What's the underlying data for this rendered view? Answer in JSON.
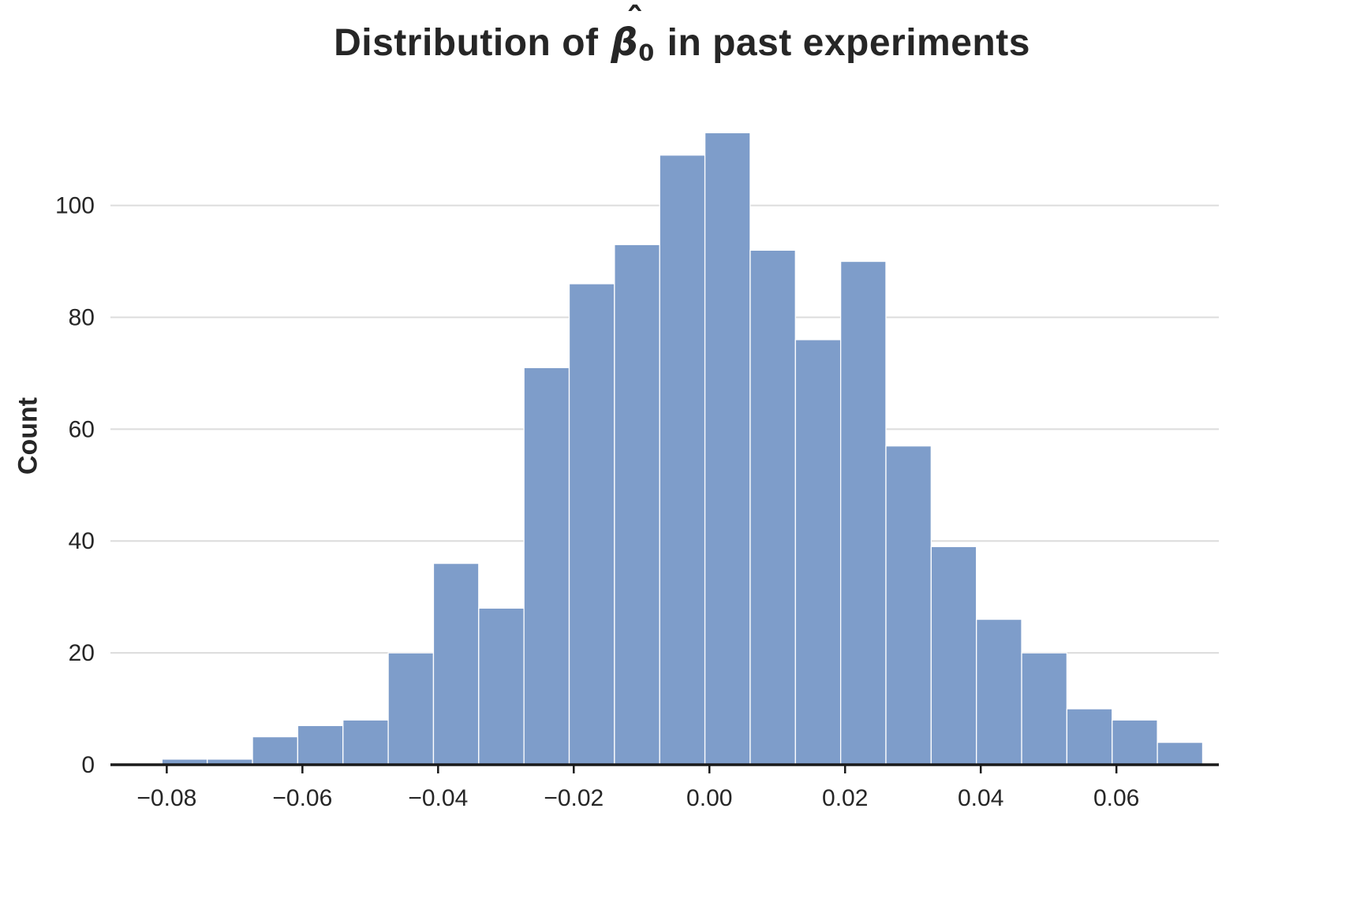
{
  "title": {
    "prefix": "Distribution of ",
    "symbol": "β",
    "hat": "ˆ",
    "subscript": "0",
    "suffix": " in past experiments"
  },
  "chart_data": {
    "type": "bar",
    "subtype": "histogram",
    "title": "Distribution of β̂₀ in past experiments",
    "xlabel": "",
    "ylabel": "Count",
    "bin_start": -0.0807,
    "bin_width": 0.00667,
    "counts": [
      1,
      1,
      5,
      7,
      8,
      20,
      36,
      28,
      71,
      86,
      93,
      109,
      113,
      92,
      76,
      90,
      57,
      39,
      26,
      20,
      10,
      8,
      4
    ],
    "x_ticks": [
      -0.08,
      -0.06,
      -0.04,
      -0.02,
      0.0,
      0.02,
      0.04,
      0.06
    ],
    "x_tick_labels": [
      "−0.08",
      "−0.06",
      "−0.04",
      "−0.02",
      "0.00",
      "0.02",
      "0.04",
      "0.06"
    ],
    "y_ticks": [
      0,
      20,
      40,
      60,
      80,
      100
    ],
    "y_tick_labels": [
      "0",
      "20",
      "40",
      "60",
      "80",
      "100"
    ],
    "xlim": [
      -0.0883,
      0.0751
    ],
    "ylim": [
      0,
      117
    ],
    "grid": "horizontal",
    "legend": false,
    "colors": {
      "bar_fill": "#7e9dca",
      "bar_edge": "#ffffff",
      "grid_line": "#dcdcdc",
      "axis_spine": "#1a1a1a",
      "text": "#262626"
    }
  }
}
